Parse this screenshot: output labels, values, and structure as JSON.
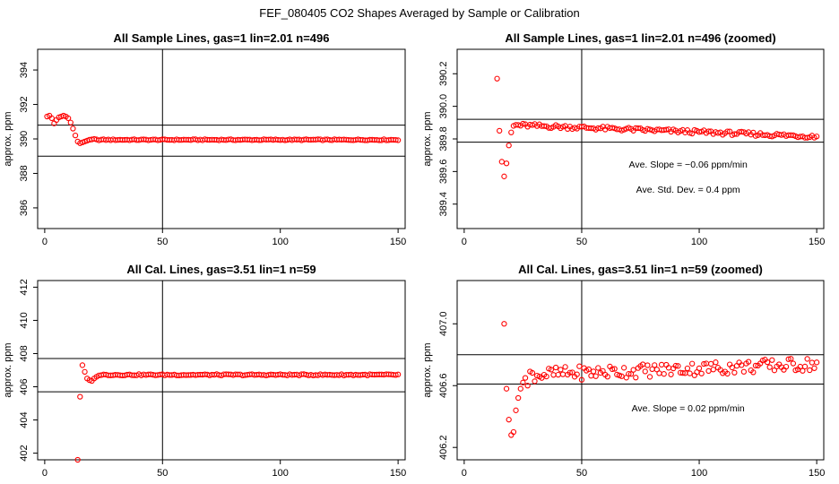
{
  "figure": {
    "title": "FEF_080405  CO2 Shapes Averaged by Sample or Calibration"
  },
  "chart_data": [
    {
      "type": "scatter",
      "title": "All Sample Lines, gas=1 lin=2.01 n=496",
      "ylabel": "approx. ppm",
      "xlabel": "",
      "xlim": [
        -3,
        153
      ],
      "ylim": [
        384.8,
        395.2
      ],
      "xticks": [
        0,
        50,
        100,
        150
      ],
      "yticks": [
        386,
        388,
        390,
        392,
        394
      ],
      "hlines": [
        389,
        390.8
      ],
      "vline": 50,
      "color": "#ff0000",
      "series": [
        {
          "x_start": 1,
          "x_end": 150,
          "head": [
            391.3,
            391.35,
            391.2,
            390.9,
            391.1,
            391.25,
            391.3,
            391.35,
            391.3,
            391.2,
            390.95,
            390.6,
            390.2,
            389.85,
            389.75,
            389.8,
            389.85,
            389.9,
            389.95,
            389.97,
            390.0
          ],
          "tail_value": 389.95
        }
      ],
      "annotations": []
    },
    {
      "type": "scatter",
      "title": "All Sample Lines, gas=1 lin=2.01 n=496 (zoomed)",
      "ylabel": "approx. ppm",
      "xlabel": "",
      "xlim": [
        -3,
        153
      ],
      "ylim": [
        389.25,
        390.35
      ],
      "xticks": [
        0,
        50,
        100,
        150
      ],
      "yticks": [
        389.4,
        389.6,
        389.8,
        390.0,
        390.2
      ],
      "hlines": [
        389.78,
        389.92
      ],
      "vline": 50,
      "color": "#ff0000",
      "series": [
        {
          "x_start": 14,
          "x_end": 150,
          "head": [
            390.17,
            389.85,
            389.66,
            389.57,
            389.65,
            389.76,
            389.84,
            389.88
          ],
          "tail_start": 389.885,
          "tail_end": 389.815
        }
      ],
      "annotations": [
        {
          "label": "Ave. Slope",
          "value": "−0.06",
          "unit": "ppm/min"
        },
        {
          "label": "Ave. Std. Dev.",
          "value": "0.4",
          "unit": "ppm"
        }
      ]
    },
    {
      "type": "scatter",
      "title": "All Cal. Lines, gas=3.51 lin=1 n=59",
      "ylabel": "approx. ppm",
      "xlabel": "",
      "xlim": [
        -3,
        153
      ],
      "ylim": [
        401.6,
        412.4
      ],
      "xticks": [
        0,
        50,
        100,
        150
      ],
      "yticks": [
        402,
        404,
        406,
        408,
        410,
        412
      ],
      "hlines": [
        405.7,
        407.7
      ],
      "vline": 50,
      "color": "#ff0000",
      "series": [
        {
          "x_start": 14,
          "x_end": 150,
          "head": [
            401.6,
            405.4,
            407.3,
            406.9,
            406.5,
            406.4,
            406.35,
            406.5,
            406.6
          ],
          "tail_value": 406.72
        }
      ],
      "annotations": []
    },
    {
      "type": "scatter",
      "title": "All Cal. Lines, gas=3.51 lin=1 n=59 (zoomed)",
      "ylabel": "approx. ppm",
      "xlabel": "",
      "xlim": [
        -3,
        153
      ],
      "ylim": [
        406.12,
        407.28
      ],
      "xticks": [
        0,
        50,
        100,
        150
      ],
      "yticks": [
        406.2,
        406.6,
        407.0
      ],
      "hlines": [
        406.61,
        406.8
      ],
      "vline": 50,
      "color": "#ff0000",
      "series": [
        {
          "x_start": 17,
          "x_end": 150,
          "head": [
            407.0,
            406.58,
            406.38,
            406.28,
            406.3,
            406.44,
            406.52,
            406.58,
            406.62,
            406.65,
            406.6
          ],
          "tail_start": 406.67,
          "tail_end": 406.74
        }
      ],
      "annotations": [
        {
          "label": "Ave. Slope",
          "value": "0.02",
          "unit": "ppm/min"
        }
      ]
    }
  ]
}
